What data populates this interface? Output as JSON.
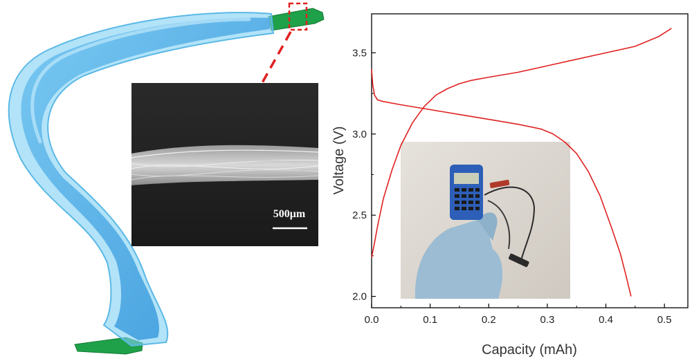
{
  "illustration": {
    "sem_inset": {
      "scale_bar_label": "500μm"
    }
  },
  "colors": {
    "fiber_blue": "#2f9be0",
    "fiber_core": "#1f8fdc",
    "electrode_green": "#1fa14a",
    "callout_red": "#e21f1f",
    "curve_red": "#e02020",
    "sem_background": "#202020"
  },
  "chart_data": {
    "type": "line",
    "title": "",
    "xlabel": "Capacity (mAh)",
    "ylabel": "Voltage (V)",
    "xlim": [
      0.0,
      0.54
    ],
    "ylim": [
      1.93,
      3.74
    ],
    "xticks": [
      0.0,
      0.1,
      0.2,
      0.3,
      0.4,
      0.5
    ],
    "xtick_labels": [
      "0.0",
      "0.1",
      "0.2",
      "0.3",
      "0.4",
      "0.5"
    ],
    "yticks": [
      2.0,
      2.5,
      3.0,
      3.5
    ],
    "ytick_labels": [
      "2.0",
      "2.5",
      "3.0",
      "3.5"
    ],
    "grid": false,
    "legend": "none",
    "series": [
      {
        "color": "#e02020",
        "x": [
          0.0,
          0.005,
          0.01,
          0.02,
          0.035,
          0.05,
          0.07,
          0.09,
          0.11,
          0.13,
          0.15,
          0.17,
          0.2,
          0.25,
          0.3,
          0.35,
          0.4,
          0.45,
          0.49,
          0.512
        ],
        "y": [
          2.24,
          2.33,
          2.43,
          2.6,
          2.78,
          2.93,
          3.07,
          3.17,
          3.24,
          3.28,
          3.31,
          3.33,
          3.35,
          3.38,
          3.42,
          3.46,
          3.5,
          3.54,
          3.6,
          3.65
        ]
      },
      {
        "color": "#e02020",
        "x": [
          0.0,
          0.002,
          0.005,
          0.01,
          0.02,
          0.05,
          0.1,
          0.15,
          0.2,
          0.25,
          0.29,
          0.31,
          0.33,
          0.35,
          0.37,
          0.39,
          0.41,
          0.425,
          0.435,
          0.443
        ],
        "y": [
          3.4,
          3.3,
          3.24,
          3.21,
          3.2,
          3.18,
          3.15,
          3.12,
          3.09,
          3.06,
          3.03,
          3.0,
          2.95,
          2.88,
          2.77,
          2.62,
          2.42,
          2.26,
          2.12,
          2.0
        ]
      }
    ]
  }
}
